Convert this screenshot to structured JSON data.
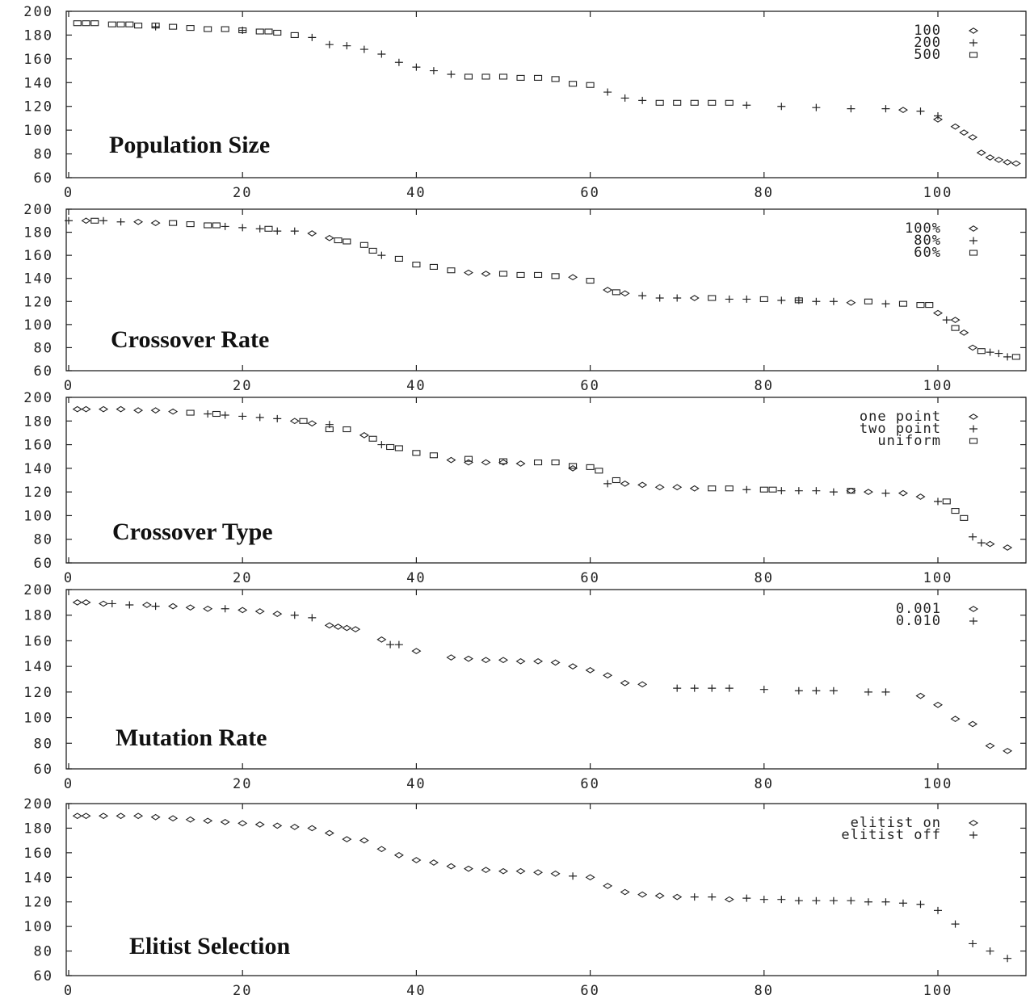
{
  "chart_data": [
    {
      "type": "scatter",
      "title": "Population Size",
      "xlim": [
        0,
        110
      ],
      "ylim": [
        60,
        200
      ],
      "xticks": [
        0,
        20,
        40,
        60,
        80,
        100
      ],
      "yticks": [
        60,
        80,
        100,
        120,
        140,
        160,
        180,
        200
      ],
      "legend": "top-right",
      "series": [
        {
          "name": "100",
          "marker": "diamond",
          "x": [
            96,
            100,
            102,
            103,
            104,
            105,
            106,
            107,
            108,
            109
          ],
          "y": [
            117,
            109,
            103,
            98,
            94,
            81,
            77,
            75,
            73,
            72
          ]
        },
        {
          "name": "200",
          "marker": "plus",
          "x": [
            10,
            20,
            28,
            30,
            32,
            34,
            36,
            38,
            40,
            42,
            44,
            62,
            64,
            66,
            78,
            82,
            86,
            90,
            94,
            98,
            100
          ],
          "y": [
            187,
            184,
            178,
            172,
            171,
            168,
            164,
            157,
            153,
            150,
            147,
            132,
            127,
            125,
            121,
            120,
            119,
            118,
            118,
            116,
            112
          ]
        },
        {
          "name": "500",
          "marker": "square",
          "x": [
            1,
            2,
            3,
            5,
            6,
            7,
            8,
            10,
            12,
            14,
            16,
            18,
            20,
            22,
            23,
            24,
            26,
            46,
            48,
            50,
            52,
            54,
            56,
            58,
            60,
            68,
            70,
            72,
            74,
            76
          ],
          "y": [
            190,
            190,
            190,
            189,
            189,
            189,
            188,
            188,
            187,
            186,
            185,
            185,
            184,
            183,
            183,
            182,
            180,
            145,
            145,
            145,
            144,
            144,
            143,
            139,
            138,
            123,
            123,
            123,
            123,
            123
          ]
        }
      ]
    },
    {
      "type": "scatter",
      "title": "Crossover Rate",
      "xlim": [
        0,
        110
      ],
      "ylim": [
        60,
        200
      ],
      "xticks": [
        0,
        20,
        40,
        60,
        80,
        100
      ],
      "yticks": [
        60,
        80,
        100,
        120,
        140,
        160,
        180,
        200
      ],
      "legend": "top-right",
      "series": [
        {
          "name": "100%",
          "marker": "diamond",
          "x": [
            2,
            8,
            10,
            28,
            30,
            46,
            48,
            58,
            62,
            64,
            72,
            90,
            100,
            102,
            103,
            104
          ],
          "y": [
            190,
            189,
            188,
            179,
            175,
            145,
            144,
            141,
            130,
            127,
            123,
            119,
            110,
            104,
            93,
            80
          ]
        },
        {
          "name": "80%",
          "marker": "plus",
          "x": [
            0,
            4,
            6,
            18,
            20,
            22,
            24,
            26,
            36,
            66,
            68,
            70,
            76,
            78,
            82,
            84,
            86,
            88,
            94,
            101,
            106,
            107,
            108
          ],
          "y": [
            190,
            190,
            189,
            185,
            184,
            183,
            181,
            181,
            160,
            125,
            123,
            123,
            122,
            122,
            121,
            121,
            120,
            120,
            118,
            104,
            76,
            75,
            72
          ]
        },
        {
          "name": "60%",
          "marker": "square",
          "x": [
            3,
            12,
            14,
            16,
            17,
            23,
            31,
            32,
            34,
            35,
            38,
            40,
            42,
            44,
            50,
            52,
            54,
            56,
            60,
            63,
            74,
            80,
            84,
            92,
            96,
            98,
            99,
            102,
            105,
            109
          ],
          "y": [
            190,
            188,
            187,
            186,
            186,
            183,
            173,
            172,
            169,
            164,
            157,
            152,
            150,
            147,
            144,
            143,
            143,
            142,
            138,
            128,
            123,
            122,
            121,
            120,
            118,
            117,
            117,
            97,
            77,
            72
          ]
        }
      ]
    },
    {
      "type": "scatter",
      "title": "Crossover Type",
      "xlim": [
        0,
        110
      ],
      "ylim": [
        60,
        200
      ],
      "xticks": [
        0,
        20,
        40,
        60,
        80,
        100
      ],
      "yticks": [
        60,
        80,
        100,
        120,
        140,
        160,
        180,
        200
      ],
      "legend": "top-right",
      "series": [
        {
          "name": "one point",
          "marker": "diamond",
          "x": [
            1,
            2,
            4,
            6,
            8,
            10,
            12,
            26,
            28,
            34,
            44,
            46,
            48,
            50,
            52,
            58,
            64,
            66,
            68,
            70,
            72,
            90,
            92,
            96,
            98,
            106,
            108
          ],
          "y": [
            190,
            190,
            190,
            190,
            189,
            189,
            188,
            180,
            178,
            168,
            147,
            145,
            145,
            145,
            144,
            140,
            127,
            126,
            124,
            124,
            123,
            121,
            120,
            119,
            116,
            76,
            73
          ]
        },
        {
          "name": "two point",
          "marker": "plus",
          "x": [
            16,
            18,
            20,
            22,
            24,
            30,
            36,
            62,
            78,
            82,
            84,
            86,
            88,
            94,
            100,
            104,
            105
          ],
          "y": [
            186,
            185,
            184,
            183,
            182,
            177,
            160,
            127,
            122,
            121,
            121,
            121,
            120,
            119,
            112,
            82,
            77
          ]
        },
        {
          "name": "uniform",
          "marker": "square",
          "x": [
            14,
            17,
            27,
            30,
            32,
            35,
            37,
            38,
            40,
            42,
            46,
            50,
            54,
            56,
            58,
            60,
            61,
            63,
            74,
            76,
            80,
            81,
            90,
            101,
            102,
            103
          ],
          "y": [
            187,
            186,
            180,
            173,
            173,
            165,
            158,
            157,
            153,
            151,
            148,
            146,
            145,
            145,
            142,
            141,
            138,
            130,
            123,
            123,
            122,
            122,
            121,
            112,
            104,
            98
          ]
        }
      ]
    },
    {
      "type": "scatter",
      "title": "Mutation Rate",
      "xlim": [
        0,
        110
      ],
      "ylim": [
        60,
        200
      ],
      "xticks": [
        0,
        20,
        40,
        60,
        80,
        100
      ],
      "yticks": [
        60,
        80,
        100,
        120,
        140,
        160,
        180,
        200
      ],
      "legend": "top-right",
      "series": [
        {
          "name": "0.001",
          "marker": "diamond",
          "x": [
            1,
            2,
            4,
            9,
            12,
            14,
            16,
            20,
            22,
            24,
            30,
            31,
            32,
            33,
            36,
            40,
            44,
            46,
            48,
            50,
            52,
            54,
            56,
            58,
            60,
            62,
            64,
            66,
            98,
            100,
            102,
            104,
            106,
            108
          ],
          "y": [
            190,
            190,
            189,
            188,
            187,
            186,
            185,
            184,
            183,
            181,
            172,
            171,
            170,
            169,
            161,
            152,
            147,
            146,
            145,
            145,
            144,
            144,
            143,
            140,
            137,
            133,
            127,
            126,
            117,
            110,
            99,
            95,
            78,
            74
          ]
        },
        {
          "name": "0.010",
          "marker": "plus",
          "x": [
            5,
            7,
            10,
            18,
            26,
            28,
            37,
            38,
            70,
            72,
            74,
            76,
            80,
            84,
            86,
            88,
            92,
            94
          ],
          "y": [
            189,
            188,
            187,
            185,
            180,
            178,
            157,
            157,
            123,
            123,
            123,
            123,
            122,
            121,
            121,
            121,
            120,
            120
          ]
        }
      ]
    },
    {
      "type": "scatter",
      "title": "Elitist Selection",
      "xlim": [
        0,
        110
      ],
      "ylim": [
        60,
        200
      ],
      "xticks": [
        0,
        20,
        40,
        60,
        80,
        100
      ],
      "yticks": [
        60,
        80,
        100,
        120,
        140,
        160,
        180,
        200
      ],
      "legend": "top-right",
      "series": [
        {
          "name": "elitist on",
          "marker": "diamond",
          "x": [
            1,
            2,
            4,
            6,
            8,
            10,
            12,
            14,
            16,
            18,
            20,
            22,
            24,
            26,
            28,
            30,
            32,
            34,
            36,
            38,
            40,
            42,
            44,
            46,
            48,
            50,
            52,
            54,
            56,
            60,
            62,
            64,
            66,
            68,
            70,
            76
          ],
          "y": [
            190,
            190,
            190,
            190,
            190,
            189,
            188,
            187,
            186,
            185,
            184,
            183,
            182,
            181,
            180,
            176,
            171,
            170,
            163,
            158,
            154,
            152,
            149,
            147,
            146,
            145,
            145,
            144,
            143,
            140,
            133,
            128,
            126,
            125,
            124,
            122
          ]
        },
        {
          "name": "elitist off",
          "marker": "plus",
          "x": [
            58,
            72,
            74,
            78,
            80,
            82,
            84,
            86,
            88,
            90,
            92,
            94,
            96,
            98,
            100,
            102,
            104,
            106,
            108
          ],
          "y": [
            141,
            124,
            124,
            123,
            122,
            122,
            121,
            121,
            121,
            121,
            120,
            120,
            119,
            118,
            113,
            102,
            86,
            80,
            74
          ]
        }
      ]
    }
  ]
}
